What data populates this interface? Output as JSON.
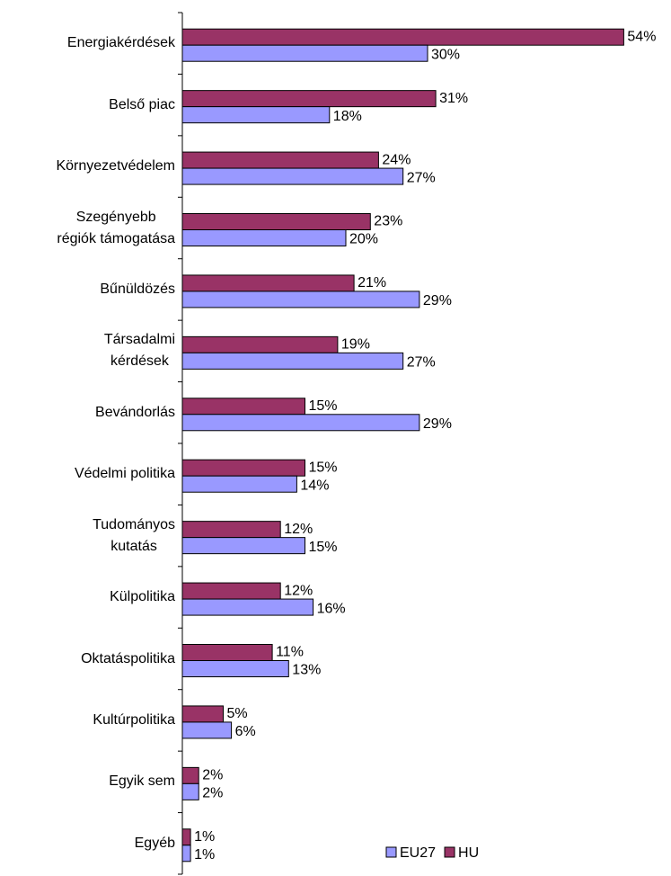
{
  "chart_data": {
    "type": "hbar",
    "categories": [
      "Energiakérdések",
      "Belső piac",
      "Környezetvédelem",
      "Szegényebb\nrégiók támogatása",
      "Bűnüldözés",
      "Társadalmi\nkérdések",
      "Bevándorlás",
      "Védelmi politika",
      "Tudományos\nkutatás",
      "Külpolitika",
      "Oktatáspolitika",
      "Kultúrpolitika",
      "Egyik sem",
      "Egyéb"
    ],
    "series": [
      {
        "name": "EU27",
        "color": "#9999ff",
        "values": [
          30,
          18,
          27,
          20,
          29,
          27,
          29,
          14,
          15,
          16,
          13,
          6,
          2,
          1
        ],
        "value_labels": [
          "30%",
          "18%",
          "27%",
          "20%",
          "29%",
          "27%",
          "29%",
          "14%",
          "15%",
          "16%",
          "13%",
          "6%",
          "2%",
          "1%"
        ]
      },
      {
        "name": "HU",
        "color": "#993366",
        "values": [
          54,
          31,
          24,
          23,
          21,
          19,
          15,
          15,
          12,
          12,
          11,
          5,
          2,
          1
        ],
        "value_labels": [
          "54%",
          "31%",
          "24%",
          "23%",
          "21%",
          "19%",
          "15%",
          "15%",
          "12%",
          "12%",
          "11%",
          "5%",
          "2%",
          "1%"
        ]
      }
    ],
    "xlim": [
      0,
      55
    ],
    "legend": "bottom-right"
  }
}
